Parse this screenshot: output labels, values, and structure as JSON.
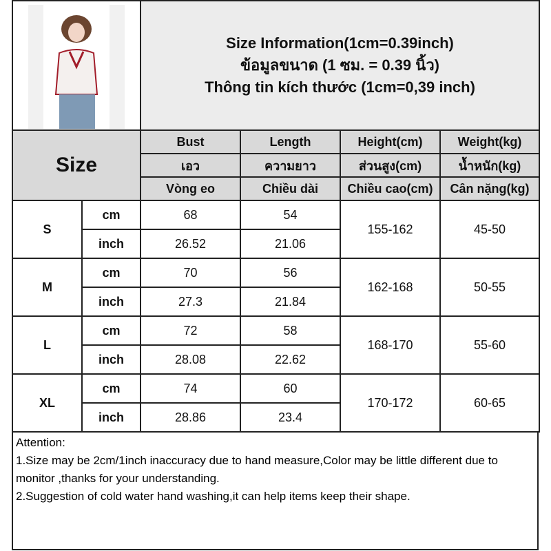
{
  "header": {
    "lines": [
      "Size Information(1cm=0.39inch)",
      "ข้อมูลขนาด (1 ซม. = 0.39 นิ้ว)",
      "Thông tin kích thước (1cm=0,39 inch)"
    ]
  },
  "size_label": "Size",
  "columns": [
    [
      "Bust",
      "เอว",
      "Vòng eo"
    ],
    [
      "Length",
      "ความยาว",
      "Chiều dài"
    ],
    [
      "Height(cm)",
      "ส่วนสูง(cm)",
      "Chiều cao(cm)"
    ],
    [
      "Weight(kg)",
      "น้ำหนัก(kg)",
      "Cân nặng(kg)"
    ]
  ],
  "rows": [
    {
      "size": "S",
      "cm_label": "cm",
      "inch_label": "inch",
      "bust_cm": "68",
      "length_cm": "54",
      "bust_in": "26.52",
      "length_in": "21.06",
      "height": "155-162",
      "weight": "45-50"
    },
    {
      "size": "M",
      "cm_label": "cm",
      "inch_label": "inch",
      "bust_cm": "70",
      "length_cm": "56",
      "bust_in": "27.3",
      "length_in": "21.84",
      "height": "162-168",
      "weight": "50-55"
    },
    {
      "size": "L",
      "cm_label": "cm",
      "inch_label": "inch",
      "bust_cm": "72",
      "length_cm": "58",
      "bust_in": "28.08",
      "length_in": "22.62",
      "height": "168-170",
      "weight": "55-60"
    },
    {
      "size": "XL",
      "cm_label": "cm",
      "inch_label": "inch",
      "bust_cm": "74",
      "length_cm": "60",
      "bust_in": "28.86",
      "length_in": "23.4",
      "height": "170-172",
      "weight": "60-65"
    }
  ],
  "notes": [
    "Attention:",
    "1.Size may be 2cm/1inch inaccuracy due to hand measure,Color may be little different due to monitor ,thanks for your understanding.",
    "2.Suggestion of cold water hand washing,it can help items keep their shape."
  ]
}
